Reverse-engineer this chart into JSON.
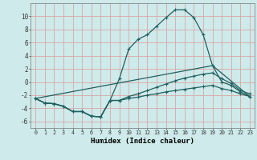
{
  "bg_color": "#ceeaea",
  "grid_color": "#d8a8a8",
  "line_color": "#206060",
  "line_width": 0.9,
  "marker": "+",
  "marker_size": 3.5,
  "marker_lw": 0.8,
  "xlabel": "Humidex (Indice chaleur)",
  "xlim": [
    -0.5,
    23.5
  ],
  "ylim": [
    -7,
    12
  ],
  "yticks": [
    -6,
    -4,
    -2,
    0,
    2,
    4,
    6,
    8,
    10
  ],
  "xticks": [
    0,
    1,
    2,
    3,
    4,
    5,
    6,
    7,
    8,
    9,
    10,
    11,
    12,
    13,
    14,
    15,
    16,
    17,
    18,
    19,
    20,
    21,
    22,
    23
  ],
  "curve1_x": [
    0,
    1,
    2,
    3,
    4,
    5,
    6,
    7,
    8,
    9,
    10,
    11,
    12,
    13,
    14,
    15,
    16,
    17,
    18,
    19,
    20,
    21,
    22,
    23
  ],
  "curve1_y": [
    -2.5,
    -3.2,
    -3.3,
    -3.7,
    -4.5,
    -4.5,
    -5.2,
    -5.3,
    -2.8,
    0.5,
    5.0,
    6.5,
    7.2,
    8.5,
    9.8,
    11.0,
    11.0,
    9.8,
    7.2,
    2.5,
    0.0,
    -0.5,
    -1.5,
    -2.2
  ],
  "curve2_x": [
    0,
    1,
    2,
    3,
    4,
    5,
    6,
    7,
    8,
    9,
    10,
    11,
    12,
    13,
    14,
    15,
    16,
    17,
    18,
    19,
    20,
    21,
    22,
    23
  ],
  "curve2_y": [
    -2.5,
    -3.2,
    -3.3,
    -3.7,
    -4.5,
    -4.5,
    -5.2,
    -5.3,
    -2.8,
    -2.8,
    -2.2,
    -1.8,
    -1.3,
    -0.8,
    -0.3,
    0.2,
    0.6,
    0.9,
    1.2,
    1.4,
    0.5,
    -0.2,
    -1.3,
    -1.8
  ],
  "curve3_x": [
    0,
    1,
    2,
    3,
    4,
    5,
    6,
    7,
    8,
    9,
    10,
    11,
    12,
    13,
    14,
    15,
    16,
    17,
    18,
    19,
    20,
    21,
    22,
    23
  ],
  "curve3_y": [
    -2.5,
    -3.2,
    -3.3,
    -3.7,
    -4.5,
    -4.5,
    -5.2,
    -5.3,
    -2.8,
    -2.8,
    -2.5,
    -2.3,
    -2.0,
    -1.8,
    -1.5,
    -1.3,
    -1.1,
    -0.9,
    -0.7,
    -0.5,
    -1.0,
    -1.3,
    -1.8,
    -2.2
  ],
  "curve4_x": [
    0,
    19,
    23
  ],
  "curve4_y": [
    -2.5,
    2.5,
    -2.2
  ]
}
